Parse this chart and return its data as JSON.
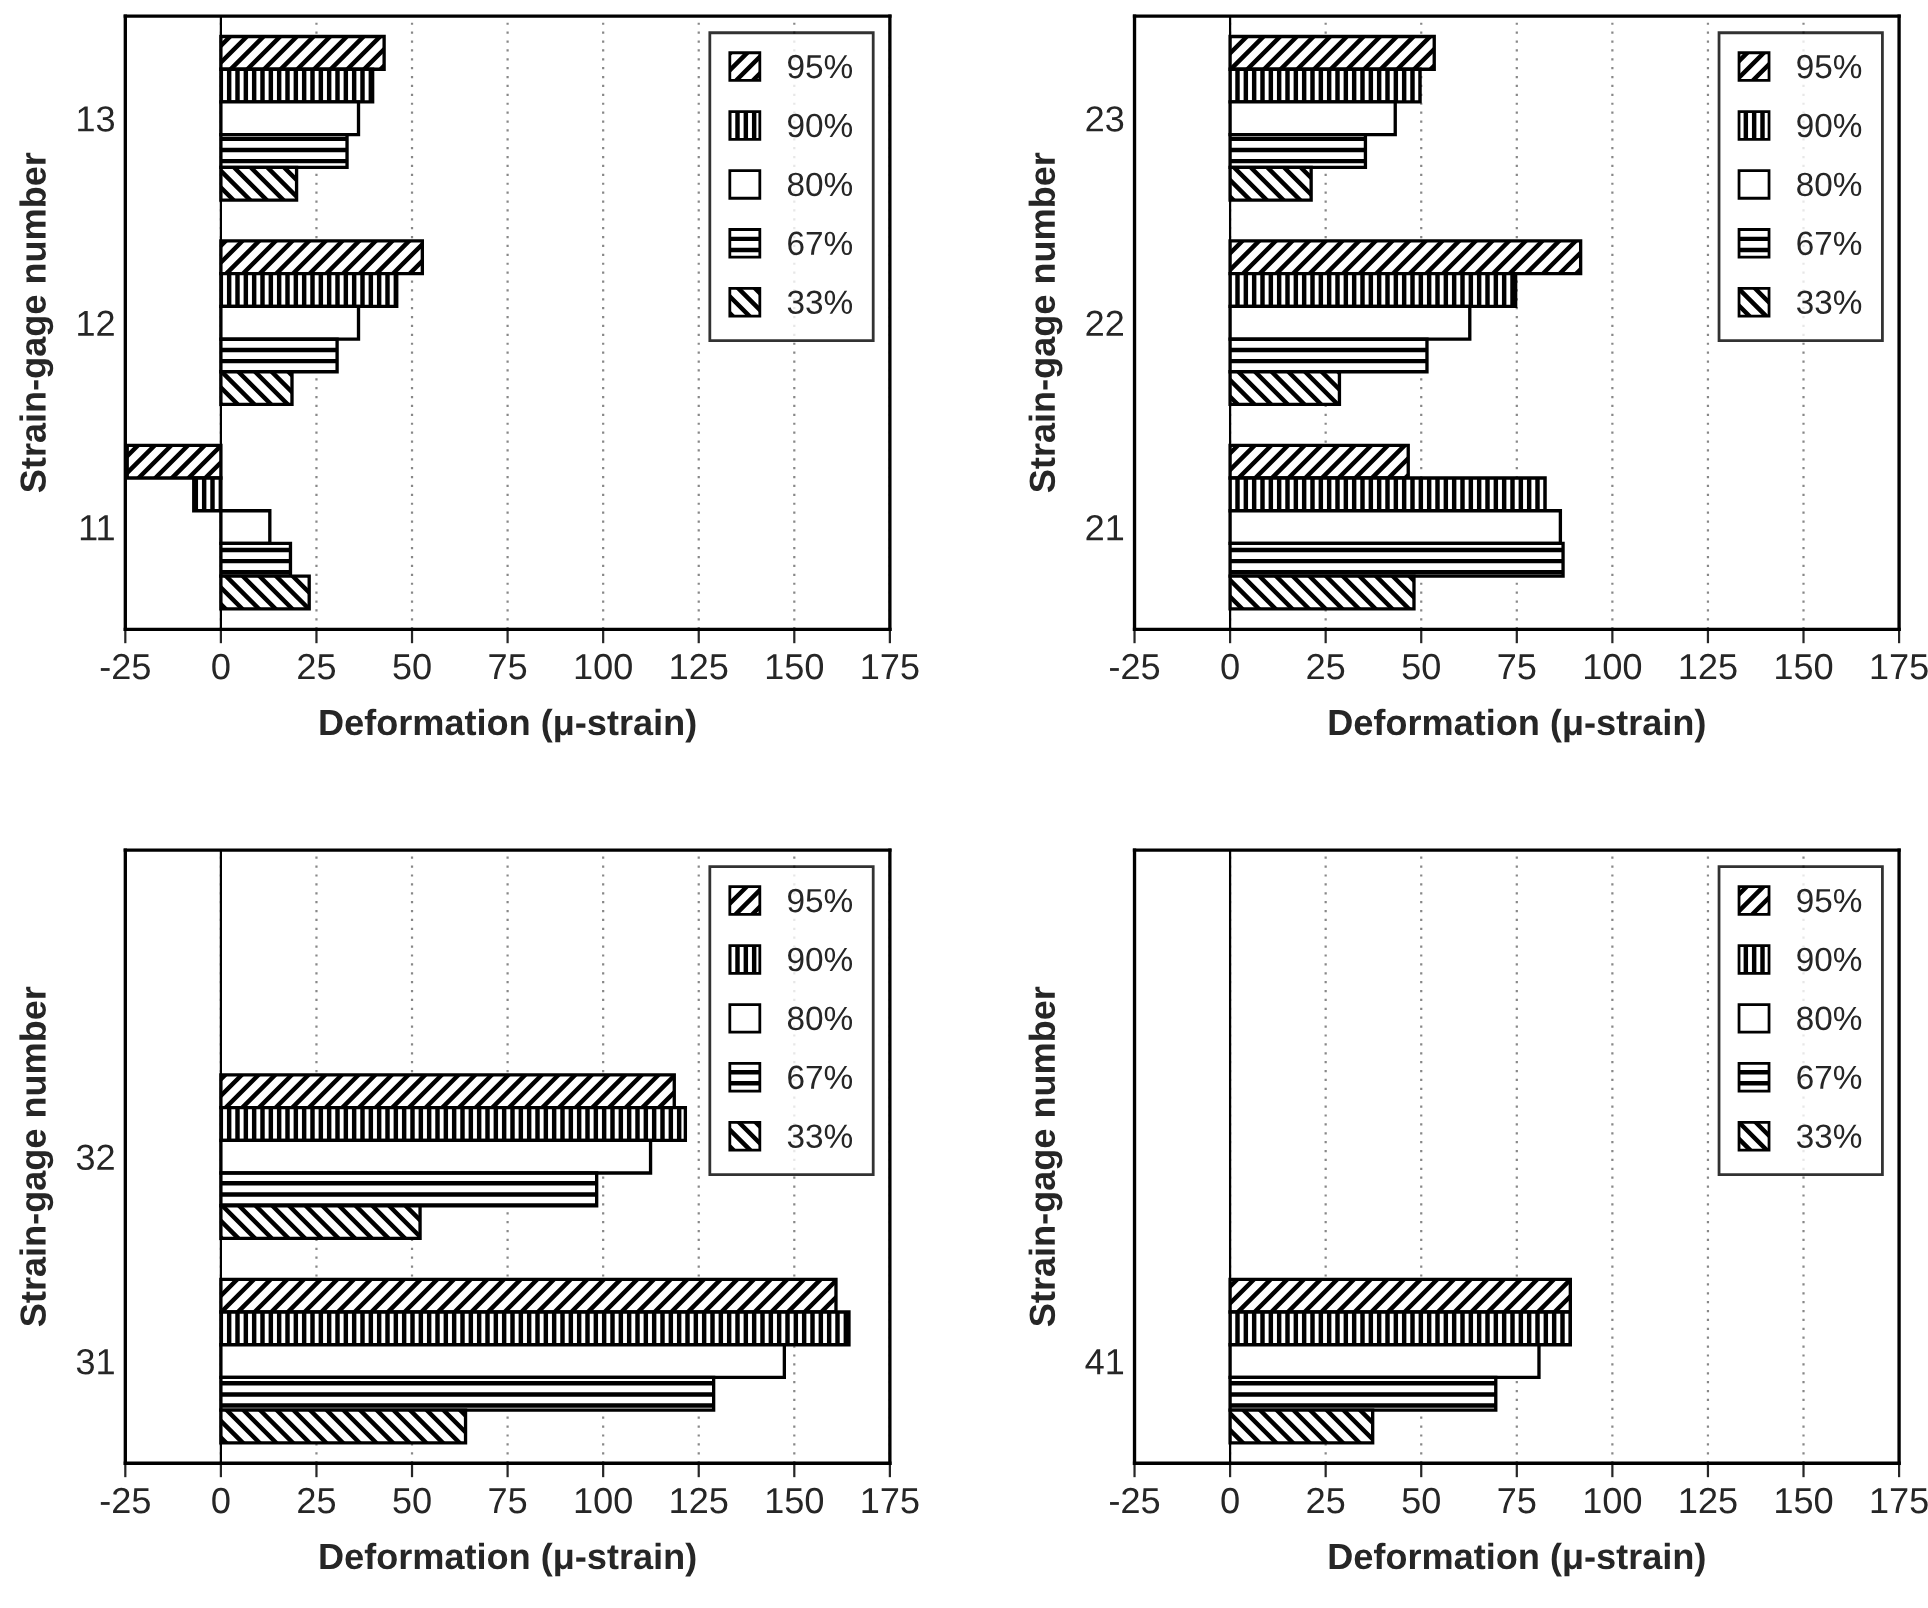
{
  "chart_data": [
    {
      "type": "bar",
      "orientation": "horizontal",
      "xlabel": "Deformation (μ-strain)",
      "ylabel": "Strain-gage number",
      "categories": [
        "13",
        "12",
        "11"
      ],
      "xlim": [
        -25,
        175
      ],
      "xticks": [
        -25,
        0,
        25,
        50,
        75,
        100,
        125,
        150,
        175
      ],
      "grid": "x",
      "legend": "top right",
      "series": [
        {
          "name": "95%",
          "color": "#000000",
          "values": [
            42.7,
            52.7,
            -24.5
          ]
        },
        {
          "name": "90%",
          "color": "#000000",
          "values": [
            39.7,
            46,
            -7.1
          ]
        },
        {
          "name": "80%",
          "color": "#ffffff",
          "values": [
            36,
            36,
            12.8
          ]
        },
        {
          "name": "67%",
          "color": "#000000",
          "values": [
            33,
            30.4,
            18.2
          ]
        },
        {
          "name": "33%",
          "color": "#000000",
          "values": [
            19.8,
            18.6,
            23.1
          ]
        }
      ]
    },
    {
      "type": "bar",
      "orientation": "horizontal",
      "xlabel": "Deformation (μ-strain)",
      "ylabel": "Strain-gage number",
      "categories": [
        "23",
        "22",
        "21"
      ],
      "xlim": [
        -25,
        175
      ],
      "xticks": [
        -25,
        0,
        25,
        50,
        75,
        100,
        125,
        150,
        175
      ],
      "grid": "x",
      "legend": "top right",
      "series": [
        {
          "name": "95%",
          "color": "#000000",
          "values": [
            53.4,
            91.7,
            46.6
          ]
        },
        {
          "name": "90%",
          "color": "#000000",
          "values": [
            49.7,
            74.7,
            82.4
          ]
        },
        {
          "name": "80%",
          "color": "#ffffff",
          "values": [
            43.2,
            62.7,
            86.4
          ]
        },
        {
          "name": "67%",
          "color": "#000000",
          "values": [
            35.4,
            51.5,
            87.1
          ]
        },
        {
          "name": "33%",
          "color": "#000000",
          "values": [
            21.2,
            28.6,
            48.1
          ]
        }
      ]
    },
    {
      "type": "bar",
      "orientation": "horizontal",
      "xlabel": "Deformation (μ-strain)",
      "ylabel": "Strain-gage number",
      "categories": [
        null,
        "32",
        "31"
      ],
      "xlim": [
        -25,
        175
      ],
      "xticks": [
        -25,
        0,
        25,
        50,
        75,
        100,
        125,
        150,
        175
      ],
      "grid": "x",
      "legend": "top right",
      "series": [
        {
          "name": "95%",
          "color": "#000000",
          "values": [
            null,
            118.6,
            160.9
          ]
        },
        {
          "name": "90%",
          "color": "#000000",
          "values": [
            null,
            121.5,
            164.3
          ]
        },
        {
          "name": "80%",
          "color": "#ffffff",
          "values": [
            null,
            112.4,
            147.4
          ]
        },
        {
          "name": "67%",
          "color": "#000000",
          "values": [
            null,
            98.3,
            128.9
          ]
        },
        {
          "name": "33%",
          "color": "#000000",
          "values": [
            null,
            52.1,
            64
          ]
        }
      ]
    },
    {
      "type": "bar",
      "orientation": "horizontal",
      "xlabel": "Deformation (μ-strain)",
      "ylabel": "Strain-gage number",
      "categories": [
        null,
        null,
        "41"
      ],
      "xlim": [
        -25,
        175
      ],
      "xticks": [
        -25,
        0,
        25,
        50,
        75,
        100,
        125,
        150,
        175
      ],
      "grid": "x",
      "legend": "top right",
      "series": [
        {
          "name": "95%",
          "color": "#000000",
          "values": [
            null,
            null,
            89
          ]
        },
        {
          "name": "90%",
          "color": "#000000",
          "values": [
            null,
            null,
            89
          ]
        },
        {
          "name": "80%",
          "color": "#ffffff",
          "values": [
            null,
            null,
            80.8
          ]
        },
        {
          "name": "67%",
          "color": "#000000",
          "values": [
            null,
            null,
            69.5
          ]
        },
        {
          "name": "33%",
          "color": "#000000",
          "values": [
            null,
            null,
            37.3
          ]
        }
      ]
    }
  ]
}
